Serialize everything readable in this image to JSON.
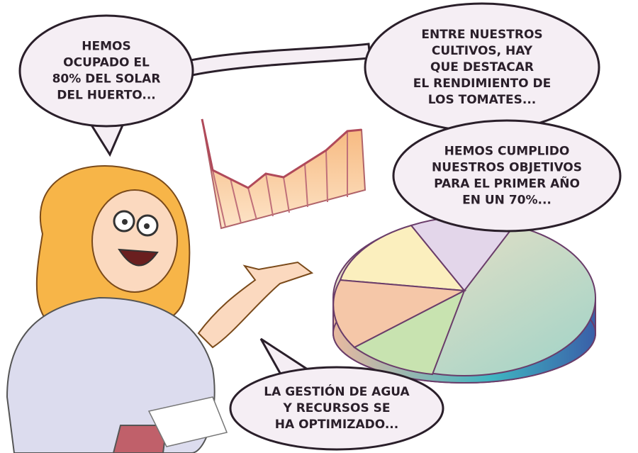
{
  "bubbles": [
    {
      "lines": [
        "HEMOS",
        "OCUPADO EL",
        "80% DEL SOLAR",
        "DEL HUERTO..."
      ]
    },
    {
      "lines": [
        "ENTRE NUESTROS",
        "CULTIVOS, HAY",
        "QUE DESTACAR",
        "EL RENDIMIENTO DE",
        "LOS TOMATES..."
      ]
    },
    {
      "lines": [
        "HEMOS CUMPLIDO",
        "NUESTROS OBJETIVOS",
        "PARA EL PRIMER AÑO",
        "EN UN 70%..."
      ]
    },
    {
      "lines": [
        "LA GESTIÓN DE AGUA",
        "Y RECURSOS SE",
        "HA OPTIMIZADO..."
      ]
    }
  ]
}
